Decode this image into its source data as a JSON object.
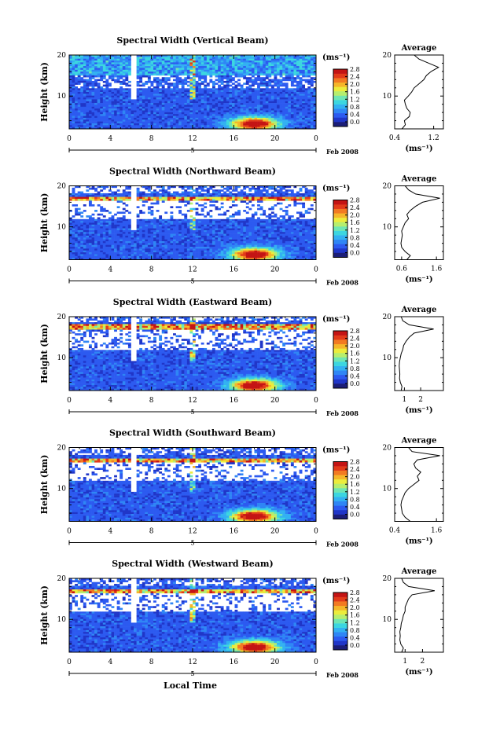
{
  "xlabel_bottom": "Local Time",
  "date_label": "Feb 2008",
  "day_label": "5",
  "avg_title": "Average",
  "cb_unit": "(ms⁻¹)",
  "avg_unit": "(ms⁻¹)",
  "ylabel": "Height (km)",
  "colors": {
    "scale": [
      "#1c1e78",
      "#2036c8",
      "#2c5af0",
      "#2f86f5",
      "#33b1f2",
      "#3cd6e0",
      "#6fe6b3",
      "#b6ee6e",
      "#ecec3c",
      "#f5b62a",
      "#f27a22",
      "#e23a1a",
      "#c41414"
    ],
    "background": "#ffffff"
  },
  "chart_data": [
    {
      "type": "heatmap",
      "title": "Spectral Width (Vertical Beam)",
      "xlabel": "",
      "ylabel": "Height (km)",
      "xlim": [
        0,
        24
      ],
      "ylim": [
        2,
        20
      ],
      "x_ticks": [
        "0",
        "4",
        "8",
        "12",
        "16",
        "20",
        "0"
      ],
      "y_ticks": [
        "10",
        "20"
      ],
      "colorbar": {
        "label": "(ms⁻¹)",
        "ticks": [
          "0.0",
          "0.4",
          "0.8",
          "1.2",
          "1.6",
          "2.0",
          "2.4",
          "2.8"
        ],
        "range": [
          0,
          2.8
        ]
      },
      "average_profile": {
        "xlim": [
          0.4,
          1.4
        ],
        "x_ticks": [
          "0.4",
          "1.2"
        ],
        "y_ticks": [
          "10",
          "20"
        ],
        "height_km": [
          2,
          3,
          4,
          5,
          6,
          7,
          8,
          9,
          10,
          11,
          12,
          13,
          14,
          15,
          16,
          17,
          18,
          19,
          20
        ],
        "width_ms": [
          0.55,
          0.62,
          0.6,
          0.7,
          0.72,
          0.65,
          0.62,
          0.6,
          0.68,
          0.75,
          0.8,
          0.9,
          1.0,
          1.05,
          1.15,
          1.3,
          1.1,
          0.9,
          0.8
        ]
      }
    },
    {
      "type": "heatmap",
      "title": "Spectral Width (Northward Beam)",
      "xlabel": "",
      "ylabel": "Height (km)",
      "xlim": [
        0,
        24
      ],
      "ylim": [
        2,
        20
      ],
      "x_ticks": [
        "0",
        "4",
        "8",
        "12",
        "16",
        "20",
        "0"
      ],
      "y_ticks": [
        "10",
        "20"
      ],
      "colorbar": {
        "label": "(ms⁻¹)",
        "ticks": [
          "0.0",
          "0.4",
          "0.8",
          "1.2",
          "1.6",
          "2.0",
          "2.4",
          "2.8"
        ],
        "range": [
          0,
          2.8
        ]
      },
      "average_profile": {
        "xlim": [
          0.4,
          1.8
        ],
        "x_ticks": [
          "0.6",
          "1.6"
        ],
        "y_ticks": [
          "10",
          "20"
        ],
        "height_km": [
          2,
          3,
          4,
          5,
          6,
          7,
          8,
          9,
          10,
          11,
          12,
          13,
          14,
          15,
          16,
          17,
          18,
          19,
          20
        ],
        "width_ms": [
          0.75,
          0.85,
          0.7,
          0.6,
          0.58,
          0.6,
          0.62,
          0.6,
          0.65,
          0.7,
          0.8,
          0.75,
          0.85,
          1.0,
          1.2,
          1.7,
          1.0,
          0.8,
          0.7
        ]
      }
    },
    {
      "type": "heatmap",
      "title": "Spectral Width (Eastward Beam)",
      "xlabel": "",
      "ylabel": "Height (km)",
      "xlim": [
        0,
        24
      ],
      "ylim": [
        2,
        20
      ],
      "x_ticks": [
        "0",
        "4",
        "8",
        "12",
        "16",
        "20",
        "0"
      ],
      "y_ticks": [
        "10",
        "20"
      ],
      "colorbar": {
        "label": "(ms⁻¹)",
        "ticks": [
          "0.0",
          "0.4",
          "0.8",
          "1.2",
          "1.6",
          "2.0",
          "2.4",
          "2.8"
        ],
        "range": [
          0,
          2.8
        ]
      },
      "average_profile": {
        "xlim": [
          0.4,
          3.4
        ],
        "x_ticks": [
          "1",
          "2"
        ],
        "y_ticks": [
          "10",
          "20"
        ],
        "height_km": [
          2,
          3,
          4,
          5,
          6,
          7,
          8,
          9,
          10,
          11,
          12,
          13,
          14,
          15,
          16,
          17,
          18,
          19,
          20
        ],
        "width_ms": [
          0.8,
          0.85,
          0.75,
          0.7,
          0.72,
          0.7,
          0.68,
          0.7,
          0.75,
          0.8,
          0.9,
          0.95,
          1.1,
          1.3,
          1.6,
          2.8,
          1.3,
          0.9,
          0.8
        ]
      }
    },
    {
      "type": "heatmap",
      "title": "Spectral Width (Southward Beam)",
      "xlabel": "",
      "ylabel": "Height (km)",
      "xlim": [
        0,
        24
      ],
      "ylim": [
        2,
        20
      ],
      "x_ticks": [
        "0",
        "4",
        "8",
        "12",
        "16",
        "20",
        "0"
      ],
      "y_ticks": [
        "10",
        "20"
      ],
      "colorbar": {
        "label": "(ms⁻¹)",
        "ticks": [
          "0.0",
          "0.4",
          "0.8",
          "1.2",
          "1.6",
          "2.0",
          "2.4",
          "2.8"
        ],
        "range": [
          0,
          2.8
        ]
      },
      "average_profile": {
        "xlim": [
          0.4,
          1.8
        ],
        "x_ticks": [
          "0.4",
          "1.6"
        ],
        "y_ticks": [
          "10",
          "20"
        ],
        "height_km": [
          2,
          3,
          4,
          5,
          6,
          7,
          8,
          9,
          10,
          11,
          12,
          13,
          14,
          15,
          16,
          17,
          18,
          19,
          20
        ],
        "width_ms": [
          0.85,
          0.7,
          0.62,
          0.6,
          0.58,
          0.6,
          0.65,
          0.7,
          0.8,
          0.95,
          1.1,
          1.05,
          1.15,
          1.0,
          0.95,
          1.05,
          1.7,
          0.9,
          0.8
        ]
      }
    },
    {
      "type": "heatmap",
      "title": "Spectral Width (Westward Beam)",
      "xlabel": "Local Time",
      "ylabel": "Height (km)",
      "xlim": [
        0,
        24
      ],
      "ylim": [
        2,
        20
      ],
      "x_ticks": [
        "0",
        "4",
        "8",
        "12",
        "16",
        "20",
        "0"
      ],
      "y_ticks": [
        "10",
        "20"
      ],
      "colorbar": {
        "label": "(ms⁻¹)",
        "ticks": [
          "0.0",
          "0.4",
          "0.8",
          "1.2",
          "1.6",
          "2.0",
          "2.4",
          "2.8"
        ],
        "range": [
          0,
          2.8
        ]
      },
      "average_profile": {
        "xlim": [
          0.4,
          3.2
        ],
        "x_ticks": [
          "1",
          "2"
        ],
        "y_ticks": [
          "10",
          "20"
        ],
        "height_km": [
          2,
          3,
          4,
          5,
          6,
          7,
          8,
          9,
          10,
          11,
          12,
          13,
          14,
          15,
          16,
          17,
          18,
          19,
          20
        ],
        "width_ms": [
          0.8,
          0.9,
          0.75,
          0.7,
          0.72,
          0.7,
          0.75,
          0.78,
          0.85,
          0.9,
          1.0,
          1.0,
          1.1,
          1.2,
          1.4,
          2.7,
          1.2,
          0.9,
          0.8
        ]
      }
    }
  ]
}
